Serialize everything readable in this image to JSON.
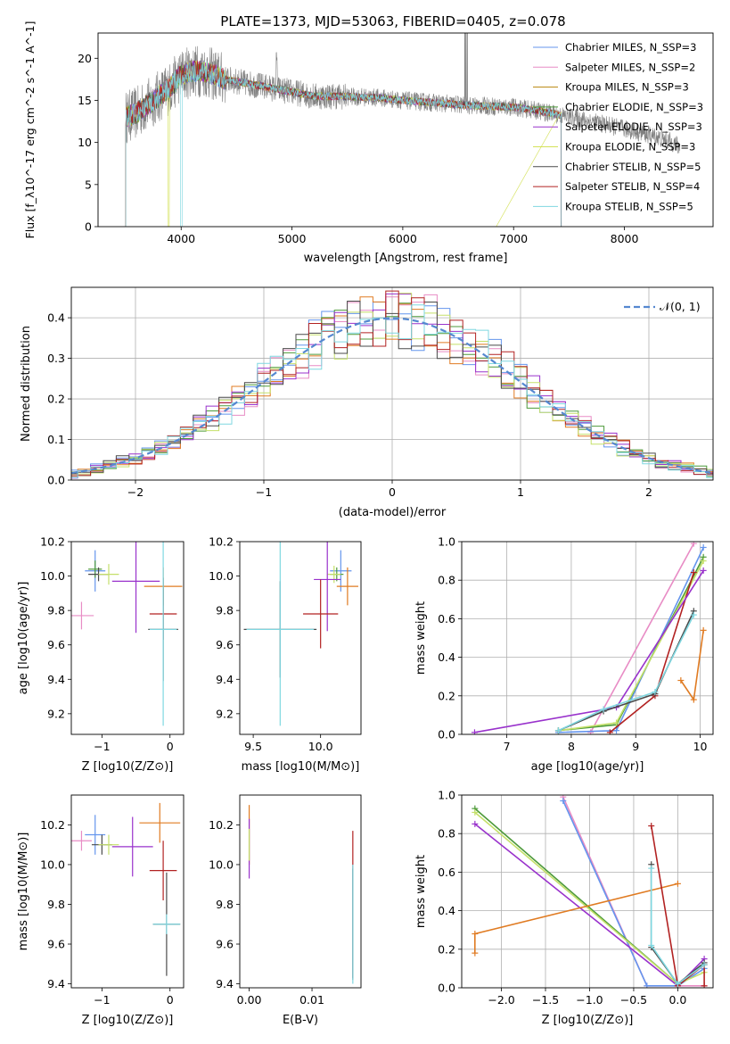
{
  "figure": {
    "title": "PLATE=1373, MJD=53063, FIBERID=0405, z=0.078"
  },
  "chart_data": [
    {
      "id": "spectrum",
      "type": "line",
      "title": "PLATE=1373, MJD=53063, FIBERID=0405, z=0.078",
      "xlabel": "wavelength [Angstrom, rest frame]",
      "ylabel": "Flux [f_λ10^-17 erg cm^-2 s^-1 A^-1]",
      "xlim": [
        3250,
        8800
      ],
      "ylim": [
        0,
        23
      ],
      "xticks": [
        4000,
        5000,
        6000,
        7000,
        8000
      ],
      "yticks": [
        0,
        5,
        10,
        15,
        20
      ],
      "legend_position": "top-right",
      "series": [
        {
          "name": "Chabrier MILES, N_SSP=3",
          "color": "#6495ed"
        },
        {
          "name": "Salpeter MILES, N_SSP=2",
          "color": "#e88cc5"
        },
        {
          "name": "Kroupa MILES, N_SSP=3",
          "color": "#b8860b"
        },
        {
          "name": "Chabrier ELODIE, N_SSP=3",
          "color": "#4d9a3a"
        },
        {
          "name": "Salpeter ELODIE, N_SSP=3",
          "color": "#9932cc"
        },
        {
          "name": "Kroupa ELODIE, N_SSP=3",
          "color": "#d4e157"
        },
        {
          "name": "Chabrier STELIB, N_SSP=5",
          "color": "#4a4a4a"
        },
        {
          "name": "Salpeter STELIB, N_SSP=4",
          "color": "#b22222"
        },
        {
          "name": "Kroupa STELIB, N_SSP=5",
          "color": "#7fd7e0"
        }
      ],
      "data_series": {
        "name": "data",
        "color": "#808080"
      },
      "continuum_knots": {
        "x": [
          3500,
          3600,
          3700,
          3800,
          3900,
          4000,
          4100,
          4200,
          4300,
          4400,
          4600,
          4800,
          5000,
          5200,
          5400,
          5600,
          5800,
          6000,
          6200,
          6400,
          6600,
          6800,
          7000,
          7200,
          7400,
          7600,
          7800,
          8000,
          8200,
          8400,
          8500
        ],
        "y": [
          13,
          13.5,
          14.5,
          15.5,
          16.5,
          18,
          18.5,
          18.5,
          18,
          17.5,
          17,
          16.5,
          16,
          15.5,
          15.5,
          15.4,
          15.3,
          15,
          14.8,
          14.6,
          14.4,
          14.3,
          14.2,
          13.8,
          13.3,
          12.8,
          12.2,
          11.6,
          11,
          10.2,
          9.5
        ]
      },
      "model_range": [
        3500,
        7430
      ],
      "data_range": [
        3500,
        8500
      ]
    },
    {
      "id": "residuals",
      "type": "histogram",
      "xlabel": "(data-model)/error",
      "ylabel": "Normed distribution",
      "xlim": [
        -2.5,
        2.5
      ],
      "ylim": [
        0,
        0.475
      ],
      "xticks": [
        -2,
        -1,
        0,
        1,
        2
      ],
      "yticks": [
        0.0,
        0.1,
        0.2,
        0.3,
        0.4
      ],
      "grid": true,
      "legend_position": "top-right",
      "gaussian": {
        "label": "𝒩(0, 1)",
        "color": "#5588d0",
        "mean": 0,
        "sigma": 1
      },
      "bin_width": 0.1,
      "series_colors": [
        "#6495ed",
        "#e88cc5",
        "#e07b22",
        "#4d9a3a",
        "#9932cc",
        "#c5e06a",
        "#4a4a4a",
        "#b22222",
        "#7fd7e0"
      ]
    },
    {
      "id": "age_vs_Z",
      "type": "errorbar",
      "xlabel": "Z [log10(Z/Z⊙)]",
      "ylabel": "age  [log10(age/yr)]",
      "xlim": [
        -1.45,
        0.2
      ],
      "ylim": [
        9.08,
        10.2
      ],
      "xticks": [
        -1,
        0
      ],
      "yticks": [
        9.2,
        9.4,
        9.6,
        9.8,
        10.0,
        10.2
      ],
      "points": [
        {
          "x": -1.1,
          "y": 10.03,
          "xerr": 0.15,
          "yerr": 0.12,
          "color": "#6495ed"
        },
        {
          "x": -1.1,
          "y": 10.04,
          "xerr": 0.1,
          "yerr": 0.05,
          "color": "#4d9a3a"
        },
        {
          "x": -1.05,
          "y": 10.01,
          "xerr": 0.15,
          "yerr": 0.04,
          "color": "#4a4a4a"
        },
        {
          "x": -0.9,
          "y": 10.01,
          "xerr": 0.15,
          "yerr": 0.06,
          "color": "#c5e06a"
        },
        {
          "x": -0.5,
          "y": 9.97,
          "xerr": 0.35,
          "yerr": 0.3,
          "color": "#9932cc"
        },
        {
          "x": -0.1,
          "y": 9.94,
          "xerr": 0.28,
          "yerr": 0.11,
          "color": "#e07b22"
        },
        {
          "x": -0.1,
          "y": 9.78,
          "xerr": 0.2,
          "yerr": 0.15,
          "color": "#b22222"
        },
        {
          "x": -1.3,
          "y": 9.77,
          "xerr": 0.18,
          "yerr": 0.08,
          "color": "#e88cc5"
        },
        {
          "x": -0.1,
          "y": 9.69,
          "xerr": 0.22,
          "yerr": 0.3,
          "color": "#4a4a4a"
        },
        {
          "x": -0.1,
          "y": 9.69,
          "xerr": 0.2,
          "yerr": 0.56,
          "color": "#7fd7e0"
        }
      ]
    },
    {
      "id": "age_vs_mass",
      "type": "errorbar",
      "xlabel": "mass [log10(M/M⊙)]",
      "ylabel": "",
      "xlim": [
        9.4,
        10.3
      ],
      "ylim": [
        9.08,
        10.2
      ],
      "xticks": [
        9.5,
        10.0
      ],
      "yticks": [
        9.2,
        9.4,
        9.6,
        9.8,
        10.0,
        10.2
      ],
      "points": [
        {
          "x": 10.15,
          "y": 10.03,
          "xerr": 0.08,
          "yerr": 0.12,
          "color": "#6495ed"
        },
        {
          "x": 10.12,
          "y": 10.01,
          "xerr": 0.05,
          "yerr": 0.04,
          "color": "#4d9a3a"
        },
        {
          "x": 10.1,
          "y": 10.01,
          "xerr": 0.05,
          "yerr": 0.05,
          "color": "#c5e06a"
        },
        {
          "x": 10.2,
          "y": 9.94,
          "xerr": 0.08,
          "yerr": 0.11,
          "color": "#e07b22"
        },
        {
          "x": 10.05,
          "y": 9.98,
          "xerr": 0.1,
          "yerr": 0.3,
          "color": "#9932cc"
        },
        {
          "x": 10.0,
          "y": 9.78,
          "xerr": 0.13,
          "yerr": 0.2,
          "color": "#b22222"
        },
        {
          "x": 9.7,
          "y": 9.69,
          "xerr": 0.27,
          "yerr": 0.28,
          "color": "#4a4a4a"
        },
        {
          "x": 9.7,
          "y": 9.69,
          "xerr": 0.25,
          "yerr": 0.56,
          "color": "#7fd7e0"
        }
      ]
    },
    {
      "id": "massweight_vs_age",
      "type": "line",
      "xlabel": "age  [log10(age/yr)]",
      "ylabel": "mass weight",
      "xlim": [
        6.3,
        10.2
      ],
      "ylim": [
        0,
        1
      ],
      "xticks": [
        7,
        8,
        9,
        10
      ],
      "yticks": [
        0.0,
        0.2,
        0.4,
        0.6,
        0.8,
        1.0
      ],
      "grid": true,
      "series": [
        {
          "color": "#e88cc5",
          "x": [
            8.3,
            9.9
          ],
          "y": [
            0.01,
            0.99
          ]
        },
        {
          "color": "#6495ed",
          "x": [
            7.8,
            8.7,
            10.05
          ],
          "y": [
            0.01,
            0.02,
            0.97
          ]
        },
        {
          "color": "#4d9a3a",
          "x": [
            7.8,
            8.7,
            10.05
          ],
          "y": [
            0.02,
            0.05,
            0.92
          ]
        },
        {
          "color": "#c5e06a",
          "x": [
            7.8,
            8.7,
            10.05
          ],
          "y": [
            0.02,
            0.06,
            0.9
          ]
        },
        {
          "color": "#b22222",
          "x": [
            8.6,
            9.3,
            9.9
          ],
          "y": [
            0.01,
            0.2,
            0.84
          ]
        },
        {
          "color": "#9932cc",
          "x": [
            6.5,
            8.7,
            10.05
          ],
          "y": [
            0.01,
            0.14,
            0.85
          ]
        },
        {
          "color": "#e07b22",
          "x": [
            9.7,
            9.9,
            10.05
          ],
          "y": [
            0.28,
            0.18,
            0.54
          ]
        },
        {
          "color": "#4a4a4a",
          "x": [
            7.8,
            8.5,
            9.3,
            9.9
          ],
          "y": [
            0.02,
            0.12,
            0.21,
            0.64
          ]
        },
        {
          "color": "#7fd7e0",
          "x": [
            7.8,
            8.5,
            9.3,
            9.9
          ],
          "y": [
            0.02,
            0.13,
            0.22,
            0.62
          ]
        }
      ]
    },
    {
      "id": "mass_vs_Z",
      "type": "errorbar",
      "xlabel": "Z [log10(Z/Z⊙)]",
      "ylabel": "mass [log10(M/M⊙)]",
      "xlim": [
        -1.45,
        0.2
      ],
      "ylim": [
        9.38,
        10.35
      ],
      "xticks": [
        -1,
        0
      ],
      "yticks": [
        9.4,
        9.6,
        9.8,
        10.0,
        10.2
      ],
      "points": [
        {
          "x": -1.1,
          "y": 10.15,
          "xerr": 0.15,
          "yerr": 0.1,
          "color": "#6495ed"
        },
        {
          "x": -1.3,
          "y": 10.12,
          "xerr": 0.15,
          "yerr": 0.05,
          "color": "#e88cc5"
        },
        {
          "x": -1.0,
          "y": 10.1,
          "xerr": 0.15,
          "yerr": 0.05,
          "color": "#4a4a4a"
        },
        {
          "x": -0.9,
          "y": 10.1,
          "xerr": 0.15,
          "yerr": 0.05,
          "color": "#c5e06a"
        },
        {
          "x": -0.55,
          "y": 10.09,
          "xerr": 0.3,
          "yerr": 0.15,
          "color": "#9932cc"
        },
        {
          "x": -0.15,
          "y": 10.21,
          "xerr": 0.3,
          "yerr": 0.1,
          "color": "#e07b22"
        },
        {
          "x": -0.1,
          "y": 9.97,
          "xerr": 0.2,
          "yerr": 0.15,
          "color": "#b22222"
        },
        {
          "x": -0.05,
          "y": 9.7,
          "xerr": 0.2,
          "yerr": 0.26,
          "color": "#4a4a4a"
        },
        {
          "x": -0.05,
          "y": 9.7,
          "xerr": 0.2,
          "yerr": 0.05,
          "color": "#7fd7e0"
        }
      ]
    },
    {
      "id": "mass_vs_ebv",
      "type": "errorbar",
      "xlabel": "E(B-V)",
      "ylabel": "",
      "xlim": [
        -0.0015,
        0.0178
      ],
      "ylim": [
        9.38,
        10.35
      ],
      "xticks": [
        0.0,
        0.01
      ],
      "tick_labels": [
        "0.00",
        "0.01"
      ],
      "yticks": [
        9.4,
        9.6,
        9.8,
        10.0,
        10.2
      ],
      "points": [
        {
          "x": 0.0,
          "y": 10.15,
          "xerr": 0,
          "yerr": 0.15,
          "color": "#e07b22"
        },
        {
          "x": 0.0,
          "y": 10.08,
          "xerr": 0,
          "yerr": 0.15,
          "color": "#9932cc"
        },
        {
          "x": 0.0,
          "y": 10.1,
          "xerr": 0,
          "yerr": 0.08,
          "color": "#c5e06a"
        },
        {
          "x": 0.0165,
          "y": 9.8,
          "xerr": 0,
          "yerr": 0.37,
          "color": "#b22222"
        },
        {
          "x": 0.0165,
          "y": 9.7,
          "xerr": 0,
          "yerr": 0.28,
          "color": "#4a4a4a"
        },
        {
          "x": 0.0165,
          "y": 9.7,
          "xerr": 0,
          "yerr": 0.3,
          "color": "#7fd7e0"
        }
      ]
    },
    {
      "id": "massweight_vs_Z",
      "type": "line",
      "xlabel": "Z [log10(Z/Z⊙)]",
      "ylabel": "mass weight",
      "xlim": [
        -2.45,
        0.4
      ],
      "ylim": [
        0,
        1
      ],
      "xticks": [
        -2.0,
        -1.5,
        -1.0,
        -0.5,
        0.0
      ],
      "yticks": [
        0.0,
        0.2,
        0.4,
        0.6,
        0.8,
        1.0
      ],
      "grid": true,
      "series": [
        {
          "color": "#e88cc5",
          "x": [
            -1.3,
            -0.35,
            0.3
          ],
          "y": [
            0.99,
            0.01,
            0.01
          ]
        },
        {
          "color": "#6495ed",
          "x": [
            -1.3,
            -0.35,
            0.0,
            0.3
          ],
          "y": [
            0.97,
            0.01,
            0.01,
            0.1
          ]
        },
        {
          "color": "#4d9a3a",
          "x": [
            -2.3,
            0.0,
            0.3
          ],
          "y": [
            0.93,
            0.02,
            0.12
          ]
        },
        {
          "color": "#c5e06a",
          "x": [
            -2.3,
            0.0,
            0.3
          ],
          "y": [
            0.91,
            0.02,
            0.08
          ]
        },
        {
          "color": "#9932cc",
          "x": [
            -2.3,
            0.0,
            0.3
          ],
          "y": [
            0.85,
            0.01,
            0.15
          ]
        },
        {
          "color": "#e07b22",
          "x": [
            -2.3,
            -2.3,
            0.0
          ],
          "y": [
            0.18,
            0.28,
            0.54
          ]
        },
        {
          "color": "#b22222",
          "x": [
            -0.3,
            0.0,
            0.3,
            0.3
          ],
          "y": [
            0.84,
            0.01,
            0.12,
            0.01
          ]
        },
        {
          "color": "#4a4a4a",
          "x": [
            -0.3,
            -0.3,
            0.0,
            0.3
          ],
          "y": [
            0.64,
            0.21,
            0.02,
            0.13
          ]
        },
        {
          "color": "#7fd7e0",
          "x": [
            -0.3,
            -0.3,
            0.0,
            0.3
          ],
          "y": [
            0.62,
            0.22,
            0.02,
            0.12
          ]
        }
      ]
    }
  ]
}
